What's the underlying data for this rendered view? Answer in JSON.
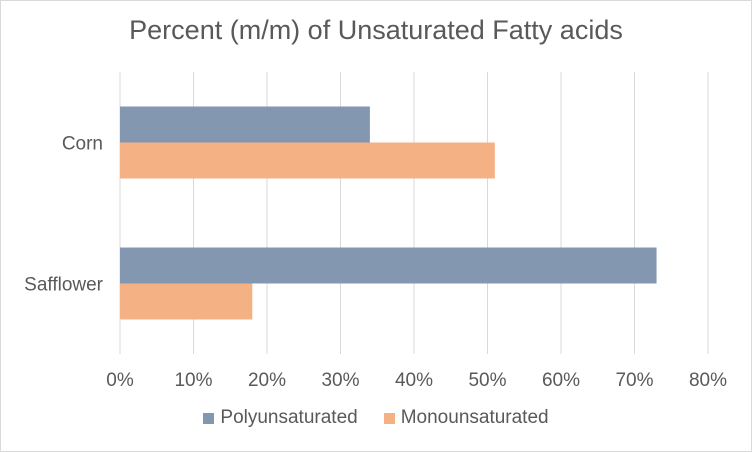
{
  "chart_data": {
    "type": "bar",
    "orientation": "horizontal",
    "title": "Percent (m/m) of Unsaturated Fatty acids",
    "categories": [
      "Safflower",
      "Corn"
    ],
    "series": [
      {
        "name": "Polyunsaturated",
        "values": [
          73,
          34
        ],
        "color": "#8497b0"
      },
      {
        "name": "Monounsaturated",
        "values": [
          18,
          51
        ],
        "color": "#f4b183"
      }
    ],
    "xlim": [
      0,
      80
    ],
    "xticks": [
      "0%",
      "10%",
      "20%",
      "30%",
      "40%",
      "50%",
      "60%",
      "70%",
      "80%"
    ],
    "grid": true,
    "legend_position": "bottom"
  }
}
